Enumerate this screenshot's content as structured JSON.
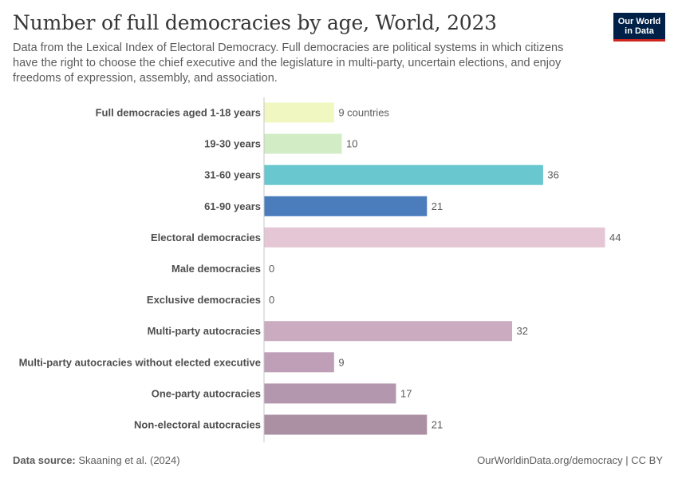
{
  "header": {
    "title": "Number of full democracies by age, World, 2023",
    "subtitle": "Data from the Lexical Index of Electoral Democracy. Full democracies are political systems in which citizens have the right to choose the chief executive and the legislature in multi-party, uncertain elections, and enjoy freedoms of expression, assembly, and association."
  },
  "logo": {
    "line1": "Our World",
    "line2": "in Data"
  },
  "footer": {
    "source_label": "Data source:",
    "source_text": "Skaaning et al. (2024)",
    "right_text": "OurWorldinData.org/democracy | CC BY"
  },
  "chart_data": {
    "type": "bar",
    "orientation": "horizontal",
    "title": "Number of full democracies by age, World, 2023",
    "unit_suffix_first": " countries",
    "categories": [
      "Full democracies aged 1-18 years",
      "19-30 years",
      "31-60 years",
      "61-90 years",
      "Electoral democracies",
      "Male democracies",
      "Exclusive democracies",
      "Multi-party autocracies",
      "Multi-party autocracies without elected executive",
      "One-party autocracies",
      "Non-electoral autocracies"
    ],
    "values": [
      9,
      10,
      36,
      21,
      44,
      0,
      0,
      32,
      9,
      17,
      21
    ],
    "colors": [
      "#f0f7c0",
      "#d2edc6",
      "#68c7cf",
      "#4b7cbc",
      "#e5c6d4",
      "#d9b9c9",
      "#d4b4c8",
      "#cbabc0",
      "#bf9eb7",
      "#b397ae",
      "#ab8fa3"
    ],
    "xlim": [
      0,
      44
    ]
  }
}
